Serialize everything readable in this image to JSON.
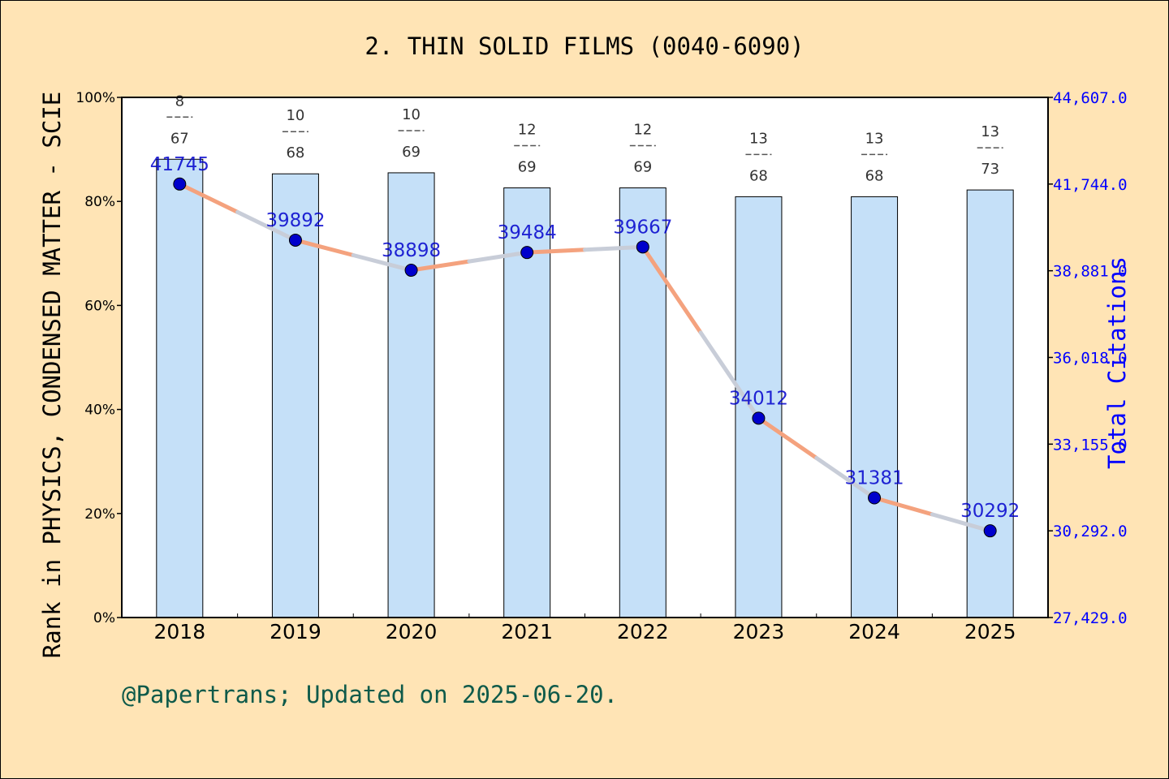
{
  "chart_data": {
    "type": "bar+line",
    "title": "2. THIN SOLID FILMS (0040-6090)",
    "ylabel_left": "Rank in PHYSICS, CONDENSED MATTER - SCIE",
    "ylabel_right": "Total Citations",
    "footer": "@Papertrans; Updated on 2025-06-20.",
    "categories": [
      "2018",
      "2019",
      "2020",
      "2021",
      "2022",
      "2023",
      "2024",
      "2025"
    ],
    "rank_percent": [
      88.1,
      85.3,
      85.5,
      82.6,
      82.6,
      80.9,
      80.9,
      82.2
    ],
    "rank": [
      8,
      10,
      10,
      12,
      12,
      13,
      13,
      13
    ],
    "category_total": [
      67,
      68,
      69,
      69,
      69,
      68,
      68,
      73
    ],
    "citations": [
      41745,
      39892,
      38898,
      39484,
      39667,
      34012,
      31381,
      30292
    ],
    "citation_labels": [
      "41745",
      "39892",
      "38898",
      "39484",
      "39667",
      "34012",
      "31381",
      "30292"
    ],
    "left_axis": {
      "range": [
        0,
        100
      ],
      "ticks": [
        "0%",
        "20%",
        "40%",
        "60%",
        "80%",
        "100%"
      ]
    },
    "right_axis": {
      "range": [
        27429,
        44607
      ],
      "ticks": [
        "27,429.0",
        "30,292.0",
        "33,155.0",
        "36,018.0",
        "38,881.0",
        "41,744.0",
        "44,607.0"
      ]
    },
    "colors": {
      "background": "#FFE4B5",
      "bar": "#C5E0F8",
      "line_up": "#F4A27E",
      "line_down": "#C8CDD8",
      "marker": "#0000CC",
      "citation_label": "#0000CC",
      "right_axis": "#0000FF",
      "footer": "#0E5A4A"
    }
  }
}
